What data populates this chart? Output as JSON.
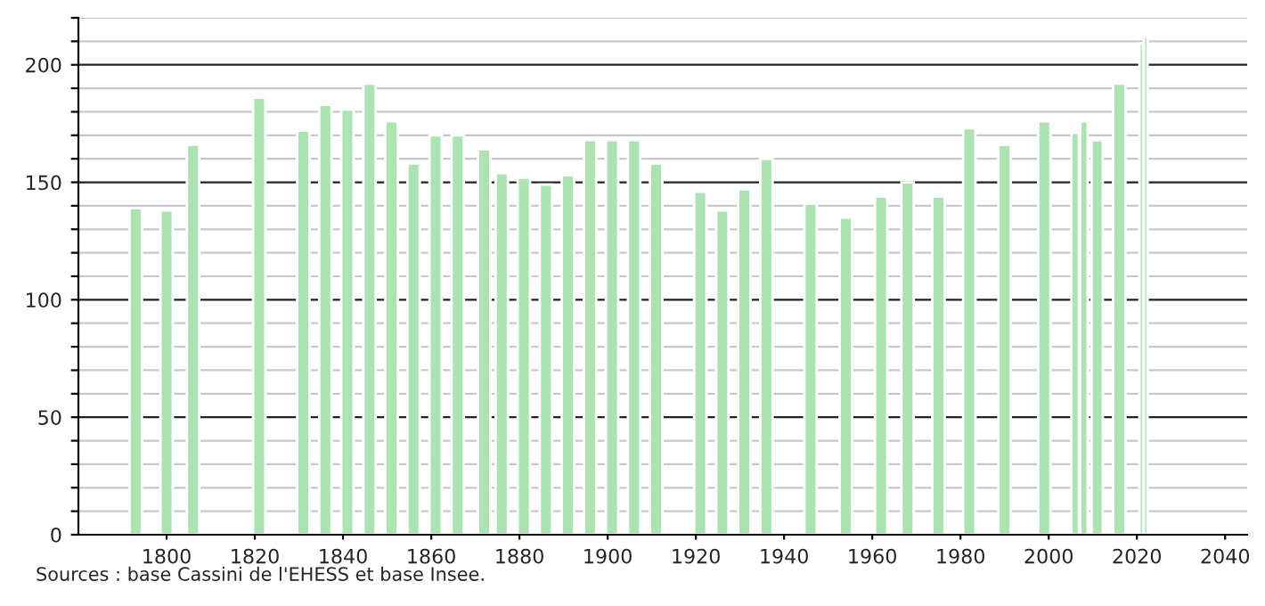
{
  "chart_data": {
    "type": "bar",
    "color": "#ade3b3",
    "x": [
      1793,
      1800,
      1806,
      1821,
      1831,
      1836,
      1841,
      1846,
      1851,
      1856,
      1861,
      1866,
      1872,
      1876,
      1881,
      1886,
      1891,
      1896,
      1901,
      1906,
      1911,
      1921,
      1926,
      1931,
      1936,
      1946,
      1954,
      1962,
      1968,
      1975,
      1982,
      1990,
      1999,
      2006,
      2008,
      2011,
      2016,
      2021,
      2022
    ],
    "values": [
      139,
      138,
      166,
      186,
      172,
      183,
      181,
      192,
      176,
      158,
      170,
      170,
      164,
      154,
      152,
      149,
      153,
      168,
      168,
      168,
      158,
      146,
      138,
      147,
      160,
      141,
      135,
      144,
      150,
      144,
      173,
      166,
      176,
      171,
      176,
      168,
      192,
      209,
      212
    ],
    "xlim": [
      1780,
      2045
    ],
    "xticks": [
      1800,
      1820,
      1840,
      1860,
      1880,
      1900,
      1920,
      1940,
      1960,
      1980,
      2000,
      2020,
      2040
    ],
    "ylim": [
      0,
      220
    ],
    "yticks": [
      0,
      {
        "value": 10,
        "label": null
      },
      {
        "value": 20,
        "label": null
      },
      {
        "value": 30,
        "label": null
      },
      {
        "value": 40,
        "label": null
      },
      50,
      {
        "value": 60,
        "label": null
      },
      {
        "value": 70,
        "label": null
      },
      {
        "value": 80,
        "label": null
      },
      {
        "value": 90,
        "label": null
      },
      100,
      {
        "value": 110,
        "label": null
      },
      {
        "value": 120,
        "label": null
      },
      {
        "value": 130,
        "label": null
      },
      {
        "value": 140,
        "label": null
      },
      150,
      {
        "value": 160,
        "label": null
      },
      {
        "value": 170,
        "label": null
      },
      {
        "value": 180,
        "label": null
      },
      {
        "value": 190,
        "label": null
      },
      200,
      {
        "value": 210,
        "label": null
      },
      {
        "value": 220,
        "label": null
      }
    ],
    "grid": "y",
    "annotations": [
      "Sources : base Cassini de l'EHESS et base Insee."
    ]
  }
}
